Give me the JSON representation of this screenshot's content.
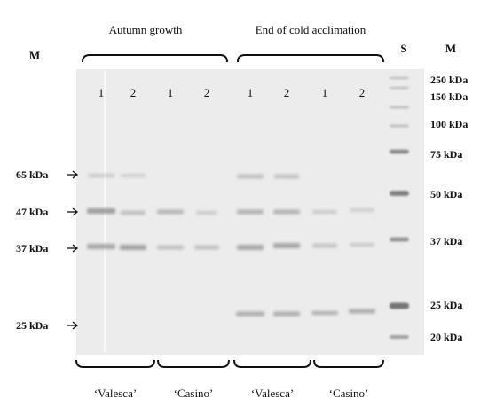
{
  "top_groups": [
    {
      "label": "Autumn growth"
    },
    {
      "label": "End of cold acclimation"
    }
  ],
  "marker_labels": {
    "left_m": "M",
    "standard_s": "S",
    "right_m": "M"
  },
  "lane_numbers": [
    "1",
    "2",
    "1",
    "2",
    "1",
    "2",
    "1",
    "2"
  ],
  "left_markers": [
    "65 kDa",
    "47 kDa",
    "37 kDa",
    "25 kDa"
  ],
  "right_markers": [
    "250 kDa",
    "150 kDa",
    "100 kDa",
    "75 kDa",
    "50 kDa",
    "37 kDa",
    "25 kDa",
    "20 kDa"
  ],
  "cultivars": [
    "‘Valesca’",
    "‘Casino’",
    "‘Valesca’",
    "‘Casino’"
  ],
  "colors": {
    "gel_background": "#ececec",
    "band": "#8a8a8a",
    "ink": "#111111"
  }
}
